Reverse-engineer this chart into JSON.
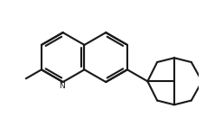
{
  "bg_color": "#ffffff",
  "line_color": "#1a1a1a",
  "line_width": 1.5,
  "fig_width": 2.27,
  "fig_height": 1.31,
  "dpi": 100,
  "xlim": [
    0.2,
    5.8
  ],
  "ylim": [
    1.2,
    4.6
  ]
}
